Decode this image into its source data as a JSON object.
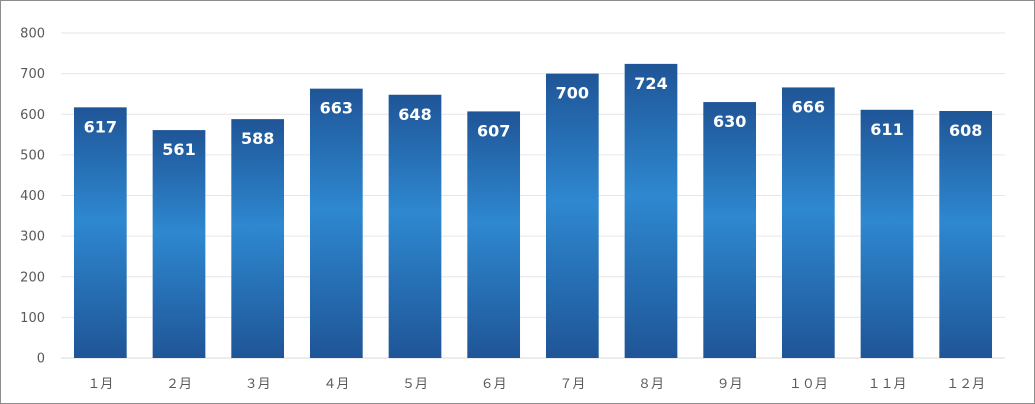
{
  "chart_data": {
    "type": "bar",
    "categories": [
      "１月",
      "２月",
      "３月",
      "４月",
      "５月",
      "６月",
      "７月",
      "８月",
      "９月",
      "１０月",
      "１１月",
      "１２月"
    ],
    "values": [
      617,
      561,
      588,
      663,
      648,
      607,
      700,
      724,
      630,
      666,
      611,
      608
    ],
    "ylim": [
      0,
      800
    ],
    "yticks": [
      "0",
      "100",
      "200",
      "300",
      "400",
      "500",
      "600",
      "700",
      "800"
    ],
    "grid": true,
    "legend": "none",
    "data_labels": true,
    "colors": {
      "bar_dark": "#1f5597",
      "bar_light": "#2e88d0",
      "grid": "#e6e6e6",
      "axis": "#d9d9d9",
      "label": "#595959"
    }
  }
}
